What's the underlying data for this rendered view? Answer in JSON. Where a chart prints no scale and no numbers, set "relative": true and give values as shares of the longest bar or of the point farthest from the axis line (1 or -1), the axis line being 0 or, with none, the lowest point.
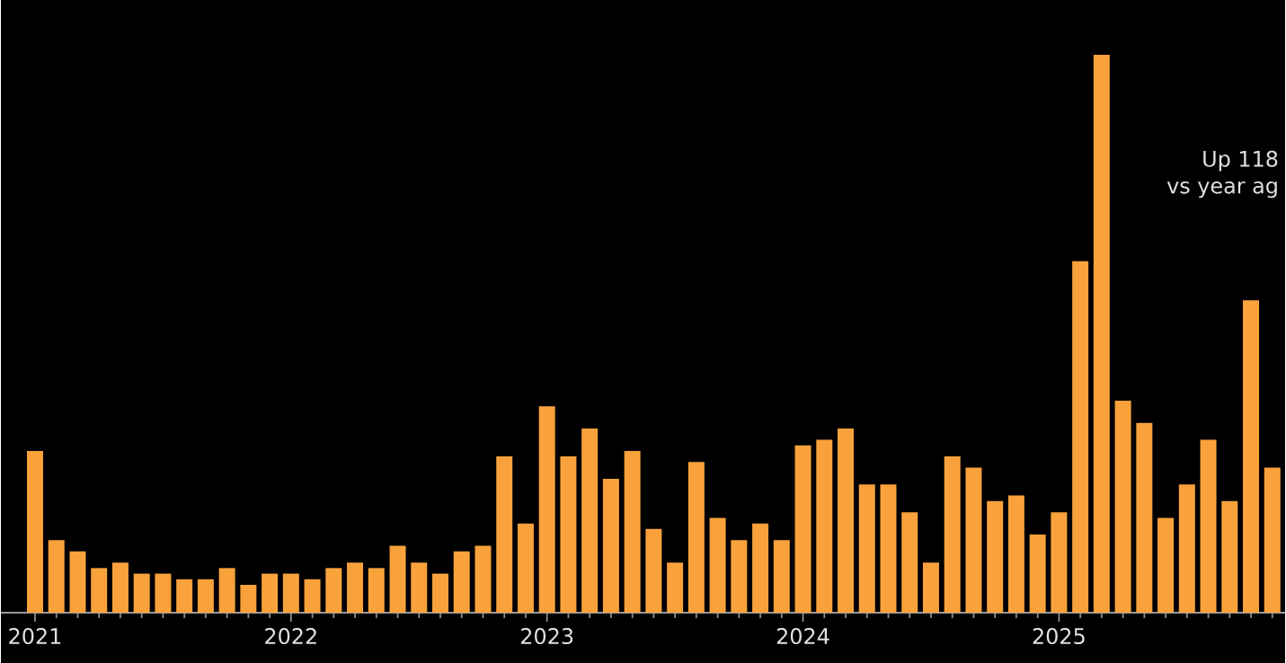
{
  "chart_data": {
    "type": "bar",
    "relative": true,
    "color": "#f9a23c",
    "categories": [
      "2021",
      null,
      null,
      null,
      null,
      null,
      null,
      null,
      null,
      null,
      null,
      null,
      "2022",
      null,
      null,
      null,
      null,
      null,
      null,
      null,
      null,
      null,
      null,
      null,
      "2023",
      null,
      null,
      null,
      null,
      null,
      null,
      null,
      null,
      null,
      null,
      null,
      "2024",
      null,
      null,
      null,
      null,
      null,
      null,
      null,
      null,
      null,
      null,
      null,
      "2025",
      null,
      null,
      null,
      null,
      null,
      null,
      null,
      null,
      null,
      null
    ],
    "values": [
      0.29,
      0.13,
      0.11,
      0.08,
      0.09,
      0.07,
      0.07,
      0.06,
      0.06,
      0.08,
      0.05,
      0.07,
      0.07,
      0.06,
      0.08,
      0.09,
      0.08,
      0.12,
      0.09,
      0.07,
      0.11,
      0.12,
      0.28,
      0.16,
      0.37,
      0.28,
      0.33,
      0.24,
      0.29,
      0.15,
      0.09,
      0.27,
      0.17,
      0.13,
      0.16,
      0.13,
      0.3,
      0.31,
      0.33,
      0.23,
      0.23,
      0.18,
      0.09,
      0.28,
      0.26,
      0.2,
      0.21,
      0.14,
      0.18,
      0.63,
      1,
      0.38,
      0.34,
      0.17,
      0.23,
      0.31,
      0.2,
      0.56,
      0.26
    ],
    "annotations": [
      "Up 118",
      "vs year ag"
    ]
  }
}
